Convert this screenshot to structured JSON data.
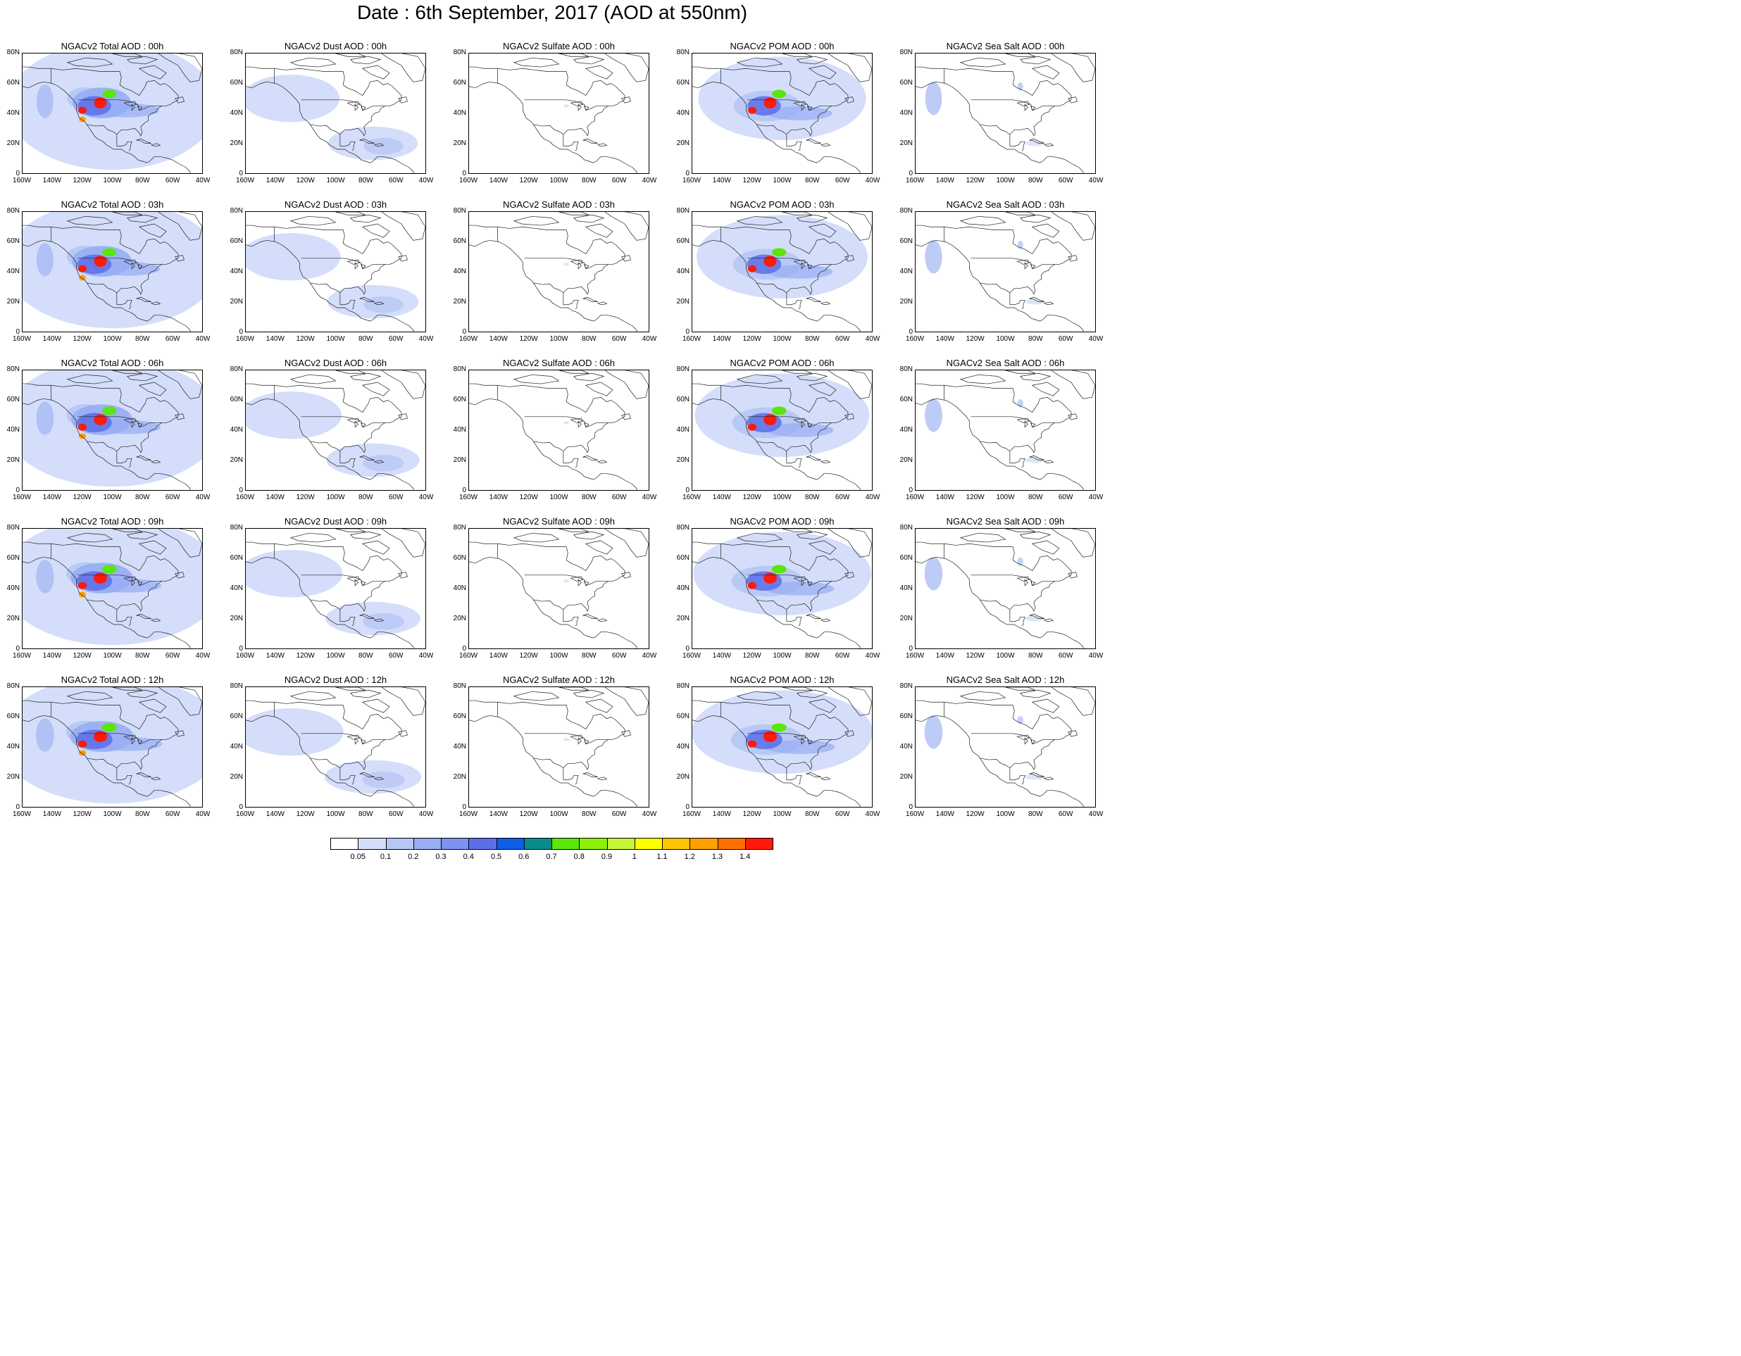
{
  "title": "Date : 6th September, 2017 (AOD at 550nm)",
  "axes": {
    "y_ticks": [
      "80N",
      "60N",
      "40N",
      "20N",
      "0"
    ],
    "x_ticks": [
      "160W",
      "140W",
      "120W",
      "100W",
      "80W",
      "60W",
      "40W"
    ],
    "lon_range": [
      -160,
      -40
    ],
    "lat_range": [
      0,
      80
    ]
  },
  "panels": [
    [
      "NGACv2 Total AOD : 00h",
      "NGACv2 Dust AOD : 00h",
      "NGACv2 Sulfate AOD : 00h",
      "NGACv2 POM AOD : 00h",
      "NGACv2 Sea Salt AOD : 00h"
    ],
    [
      "NGACv2 Total AOD : 03h",
      "NGACv2 Dust AOD : 03h",
      "NGACv2 Sulfate AOD : 03h",
      "NGACv2 POM AOD : 03h",
      "NGACv2 Sea Salt AOD : 03h"
    ],
    [
      "NGACv2 Total AOD : 06h",
      "NGACv2 Dust AOD : 06h",
      "NGACv2 Sulfate AOD : 06h",
      "NGACv2 POM AOD : 06h",
      "NGACv2 Sea Salt AOD : 06h"
    ],
    [
      "NGACv2 Total AOD : 09h",
      "NGACv2 Dust AOD : 09h",
      "NGACv2 Sulfate AOD : 09h",
      "NGACv2 POM AOD : 09h",
      "NGACv2 Sea Salt  AOD : 09h"
    ],
    [
      "NGACv2 Total AOD  : 12h",
      "NGACv2 Dust AOD : 12h",
      "NGACv2 Sulfate AOD : 12h",
      "NGACv2 POM  AOD : 12h",
      "NGACv2 Sea Salt  AOD : 12h"
    ]
  ],
  "colorbar": {
    "labels": [
      "0.05",
      "0.1",
      "0.2",
      "0.3",
      "0.4",
      "0.5",
      "0.6",
      "0.7",
      "0.8",
      "0.9",
      "1",
      "1.1",
      "1.2",
      "1.3",
      "1.4"
    ],
    "colors": [
      "#ffffff",
      "#d4defa",
      "#b6c6f5",
      "#97adf4",
      "#7d92f0",
      "#5c6ee8",
      "#0f5fe6",
      "#0b8c8c",
      "#59e608",
      "#8ef00a",
      "#c6f53a",
      "#ffff00",
      "#ffc600",
      "#ff9f00",
      "#ff7000",
      "#ff1a0a"
    ]
  },
  "plume_colors": {
    "light": "#d4defa",
    "mid": "#b6c6f5",
    "strong": "#97adf4",
    "deep": "#7d92f0",
    "blue": "#5c6ee8",
    "teal": "#0b8c8c",
    "green": "#59e608",
    "yellow": "#ffff00",
    "orange": "#ff9f00",
    "red": "#ff1a0a"
  }
}
